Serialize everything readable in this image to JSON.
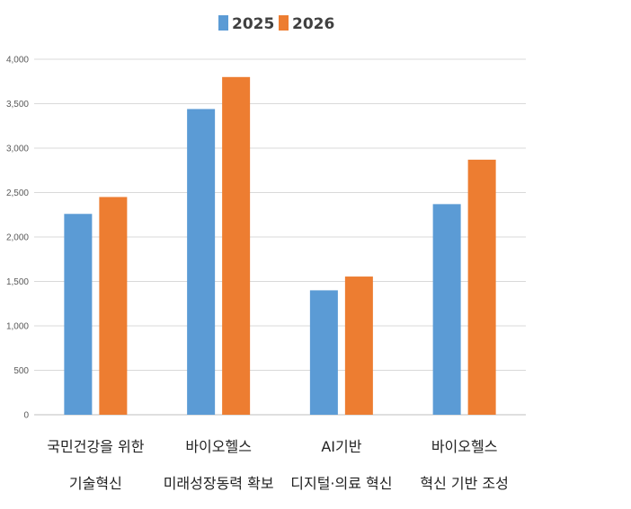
{
  "chart_data": {
    "type": "bar",
    "categories": [
      [
        "국민건강을 위한",
        "기술혁신"
      ],
      [
        "바이오헬스",
        "미래성장동력 확보"
      ],
      [
        "AI기반",
        "디지털·의료 혁신"
      ],
      [
        "바이오헬스",
        "혁신 기반 조성"
      ]
    ],
    "series": [
      {
        "name": "2025",
        "color": "#5B9BD5",
        "values": [
          2260,
          3440,
          1400,
          2370
        ]
      },
      {
        "name": "2026",
        "color": "#ED7D31",
        "values": [
          2450,
          3800,
          1555,
          2870
        ]
      }
    ],
    "yticks": [
      "0",
      "500",
      "1,000",
      "1,500",
      "2,000",
      "2,500",
      "3,000",
      "3,500",
      "4,000"
    ],
    "ylim": [
      0,
      4000
    ],
    "grid": true,
    "legend": "top-center"
  }
}
